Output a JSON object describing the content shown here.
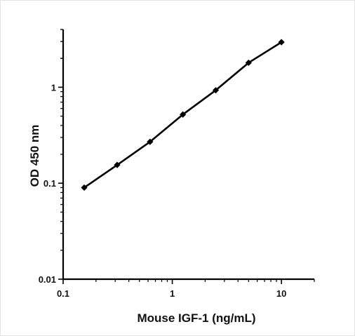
{
  "chart_data": {
    "type": "line",
    "xlabel": "Mouse IGF-1  (ng/mL)",
    "ylabel": "OD 450 nm",
    "x_scale": "log",
    "y_scale": "log",
    "xlim": [
      0.1,
      20
    ],
    "ylim": [
      0.01,
      4
    ],
    "x_ticks": [
      0.1,
      1,
      10
    ],
    "x_tick_labels": [
      "0.1",
      "1",
      "10"
    ],
    "y_ticks": [
      0.01,
      0.1,
      1
    ],
    "y_tick_labels": [
      "0.01",
      "0.1",
      "1"
    ],
    "grid": false,
    "legend": "none",
    "marker": "diamond",
    "line_color": "#000000",
    "series": [
      {
        "x": [
          0.156,
          0.3125,
          0.625,
          1.25,
          2.5,
          5,
          10
        ],
        "y": [
          0.09,
          0.155,
          0.27,
          0.52,
          0.93,
          1.8,
          2.95
        ]
      }
    ]
  }
}
